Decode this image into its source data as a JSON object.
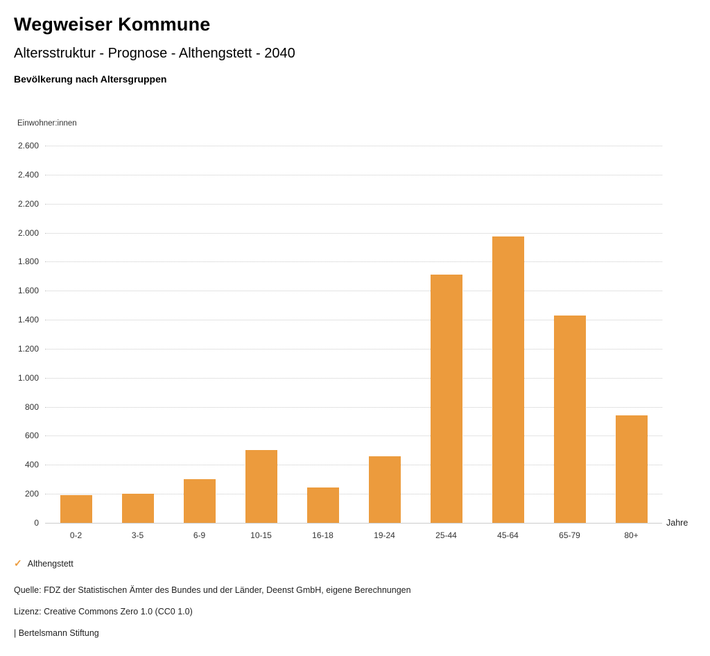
{
  "header": {
    "title": "Wegweiser Kommune",
    "subtitle": "Altersstruktur - Prognose - Althengstett - 2040",
    "chart_title": "Bevölkerung nach Altersgruppen"
  },
  "chart_data": {
    "type": "bar",
    "title": "Bevölkerung nach Altersgruppen",
    "ylabel": "Einwohner:innen",
    "xlabel": "Jahre",
    "categories": [
      "0-2",
      "3-5",
      "6-9",
      "10-15",
      "16-18",
      "19-24",
      "25-44",
      "45-64",
      "65-79",
      "80+"
    ],
    "series": [
      {
        "name": "Althengstett",
        "color": "#EC9B3D",
        "values": [
          190,
          200,
          300,
          500,
          245,
          460,
          1710,
          1975,
          1430,
          740
        ]
      }
    ],
    "ylim": [
      0,
      2600
    ],
    "ytick_interval": 200,
    "ytick_labels": [
      "0",
      "200",
      "400",
      "600",
      "800",
      "1.000",
      "1.200",
      "1.400",
      "1.600",
      "1.800",
      "2.000",
      "2.200",
      "2.400",
      "2.600"
    ],
    "grid": "horizontal dotted",
    "legend_position": "bottom-left"
  },
  "legend": {
    "marker": "✓",
    "label": "Althengstett"
  },
  "footer": {
    "source": "Quelle: FDZ der Statistischen Ämter des Bundes und der Länder, Deenst GmbH, eigene Berechnungen",
    "license": "Lizenz: Creative Commons Zero 1.0 (CC0 1.0)",
    "attribution": "| Bertelsmann Stiftung"
  },
  "colors": {
    "bar": "#EC9B3D",
    "gridline": "#c9c9c9",
    "legend_check": "#EC9B3D"
  }
}
